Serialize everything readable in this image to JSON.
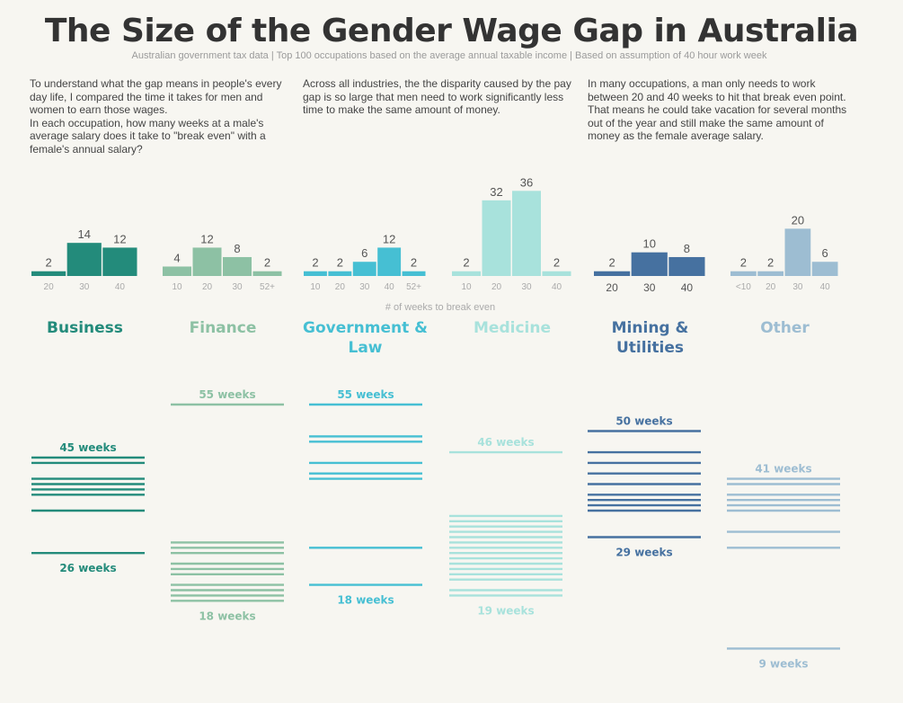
{
  "title": "The Size of the Gender Wage Gap in Australia",
  "subtitle": "Australian government tax data | Top 100 occupations based on the average annual taxable income | Based on assumption of 40 hour work week",
  "intro": [
    "To understand what the gap means in people's every day life, I compared the time it takes for men and women to earn those wages.\nIn each occupation, how many weeks at a male's average salary does it take to \"break even\" with a female's annual salary?",
    "Across all industries, the the disparity caused by the pay gap is so large that men need to work significantly less time to make the same amount of money.",
    "In many occupations, a man only needs to work between 20 and 40 weeks to hit that break even point.  That means he could take vacation for several months out of the year and still make the same amount of money as the female average salary."
  ],
  "chart_data": {
    "type": "bar",
    "xlabel": "# of weeks to break even",
    "colors": {
      "Business": "#238b7b",
      "Finance": "#8dc1a4",
      "Government & Law": "#46bfd3",
      "Medicine": "#a8e2dc",
      "Mining & Utilities": "#4671a0",
      "Other": "#9dbdd2"
    },
    "groups": [
      {
        "name": "Business",
        "categories": [
          "20",
          "30",
          "40"
        ],
        "values": [
          2,
          14,
          12
        ]
      },
      {
        "name": "Finance",
        "categories": [
          "10",
          "20",
          "30",
          "52+"
        ],
        "values": [
          4,
          12,
          8,
          2
        ]
      },
      {
        "name": "Government & Law",
        "categories": [
          "10",
          "20",
          "30",
          "40",
          "52+"
        ],
        "values": [
          2,
          2,
          6,
          12,
          2
        ]
      },
      {
        "name": "Medicine",
        "categories": [
          "10",
          "20",
          "30",
          "40"
        ],
        "values": [
          2,
          32,
          36,
          2
        ]
      },
      {
        "name": "Mining & Utilities",
        "categories": [
          "20",
          "30",
          "40"
        ],
        "values": [
          2,
          10,
          8
        ]
      },
      {
        "name": "Other",
        "categories": [
          "<10",
          "20",
          "30",
          "40"
        ],
        "values": [
          2,
          2,
          20,
          6
        ]
      }
    ],
    "week_strips": [
      {
        "name": "Business",
        "max_label": "45 weeks",
        "min_label": "26 weeks",
        "weeks": [
          45,
          44,
          41,
          40,
          39,
          38,
          35,
          27
        ]
      },
      {
        "name": "Finance",
        "max_label": "55 weeks",
        "min_label": "18 weeks",
        "weeks": [
          55,
          29,
          28,
          27,
          25,
          24,
          23,
          21,
          20,
          19,
          18
        ]
      },
      {
        "name": "Government & Law",
        "max_label": "55 weeks",
        "min_label": "18 weeks",
        "weeks": [
          55,
          49,
          48,
          44,
          42,
          41,
          28,
          21
        ]
      },
      {
        "name": "Medicine",
        "max_label": "46 weeks",
        "min_label": "19 weeks",
        "weeks": [
          46,
          34,
          33,
          32,
          31,
          30,
          29,
          28,
          27,
          26,
          25,
          24,
          23,
          22,
          20,
          19
        ]
      },
      {
        "name": "Mining & Utilities",
        "max_label": "50 weeks",
        "min_label": "29 weeks",
        "weeks": [
          50,
          46,
          44,
          42,
          40,
          38,
          37,
          36,
          35,
          30
        ]
      },
      {
        "name": "Other",
        "max_label": "41 weeks",
        "min_label": "9 weeks",
        "weeks": [
          41,
          40,
          38,
          37,
          36,
          35,
          31,
          28,
          9
        ]
      }
    ]
  }
}
